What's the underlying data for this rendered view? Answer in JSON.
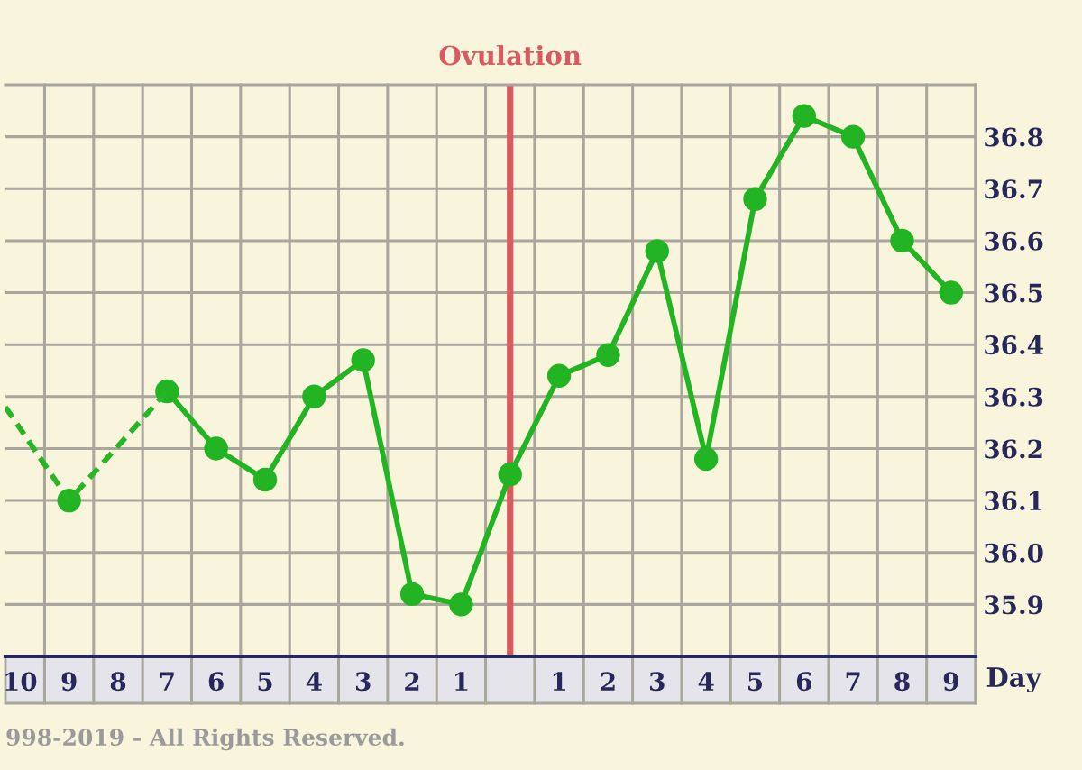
{
  "chart_data": {
    "type": "line",
    "xlabel": "Day",
    "xlim": [
      -10.3,
      9.5
    ],
    "xticks": [
      {
        "value": -10,
        "label": "10"
      },
      {
        "value": -9,
        "label": "9"
      },
      {
        "value": -8,
        "label": "8"
      },
      {
        "value": -7,
        "label": "7"
      },
      {
        "value": -6,
        "label": "6"
      },
      {
        "value": -5,
        "label": "5"
      },
      {
        "value": -4,
        "label": "4"
      },
      {
        "value": -3,
        "label": "3"
      },
      {
        "value": -2,
        "label": "2"
      },
      {
        "value": -1,
        "label": "1"
      },
      {
        "value": 0,
        "label": null
      },
      {
        "value": 1,
        "label": "1"
      },
      {
        "value": 2,
        "label": "2"
      },
      {
        "value": 3,
        "label": "3"
      },
      {
        "value": 4,
        "label": "4"
      },
      {
        "value": 5,
        "label": "5"
      },
      {
        "value": 6,
        "label": "6"
      },
      {
        "value": 7,
        "label": "7"
      },
      {
        "value": 8,
        "label": "8"
      },
      {
        "value": 9,
        "label": "9"
      }
    ],
    "ylim": [
      35.8,
      36.9
    ],
    "yticks": [
      35.9,
      {
        "value": 36.0,
        "label": "36.0"
      },
      36.1,
      36.2,
      36.3,
      36.4,
      36.5,
      36.6,
      36.7,
      36.8
    ],
    "grid": true,
    "series": [
      {
        "color": "#22b422",
        "line_style": "solid",
        "marker": "circle",
        "x": [
          -9,
          -8,
          -7,
          -6,
          -5,
          -4,
          -3,
          -2,
          -1,
          0,
          1,
          2,
          3,
          4,
          5,
          6,
          7,
          8,
          9
        ],
        "values": [
          36.1,
          null,
          36.31,
          36.2,
          36.14,
          36.3,
          36.37,
          35.92,
          35.9,
          36.15,
          36.34,
          36.38,
          36.58,
          36.18,
          36.68,
          36.84,
          36.8,
          36.6,
          36.5
        ]
      },
      {
        "color": "#26b626",
        "line_style": "dashed",
        "marker": "none",
        "x": [
          -10.3,
          -9,
          -7
        ],
        "values": [
          36.28,
          36.1,
          36.31
        ]
      }
    ],
    "ref_lines": [
      {
        "axis": "x",
        "value": 0,
        "label": "Ovulation",
        "color": "#d95b5f"
      }
    ],
    "annotations": [
      "998-2019 - All Rights Reserved."
    ]
  }
}
